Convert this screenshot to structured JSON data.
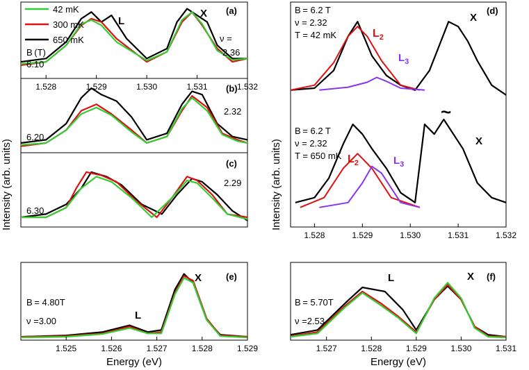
{
  "figure": {
    "y_axis_label": "Intensity (arb. units)",
    "x_axis_label": "Energy (eV)",
    "legend": [
      {
        "label": "42 mK",
        "color": "#33cc33"
      },
      {
        "label": "300 mK",
        "color": "#dd1111"
      },
      {
        "label": "650 mK",
        "color": "#000000"
      }
    ],
    "colors": {
      "green": "#33cc33",
      "red": "#dd1111",
      "black": "#000000",
      "purple": "#8833ee"
    }
  },
  "chart_data": [
    {
      "type": "line",
      "panel_label": "(a)",
      "xlim": [
        1.5275,
        1.532
      ],
      "ylim": [
        0,
        1.15
      ],
      "xticks": [
        1.528,
        1.529,
        1.53,
        1.531,
        1.532
      ],
      "texts": {
        "peak_L": "L",
        "peak_X": "X",
        "bt_label": "B (T)",
        "bt_value": "6.10",
        "nu_label": "ν =",
        "nu_value": "2.36"
      },
      "series": [
        {
          "name": "650 mK",
          "x": [
            1.5275,
            1.528,
            1.5284,
            1.5287,
            1.5289,
            1.5291,
            1.5293,
            1.5296,
            1.53,
            1.5304,
            1.5306,
            1.5308,
            1.531,
            1.5312,
            1.5314,
            1.5317,
            1.532
          ],
          "y": [
            0.25,
            0.3,
            0.55,
            0.9,
            1.0,
            0.85,
            0.95,
            0.6,
            0.3,
            0.45,
            0.85,
            1.05,
            0.95,
            0.85,
            0.5,
            0.3,
            0.3
          ]
        },
        {
          "name": "300 mK",
          "x": [
            1.5275,
            1.528,
            1.5284,
            1.5287,
            1.5289,
            1.5291,
            1.5294,
            1.53,
            1.5304,
            1.5307,
            1.5309,
            1.5311,
            1.5314,
            1.5317,
            1.532
          ],
          "y": [
            0.2,
            0.25,
            0.5,
            0.8,
            0.9,
            0.85,
            0.6,
            0.25,
            0.4,
            0.85,
            1.0,
            0.8,
            0.45,
            0.25,
            0.3
          ]
        },
        {
          "name": "42 mK",
          "x": [
            1.5275,
            1.528,
            1.5284,
            1.5287,
            1.5289,
            1.5291,
            1.5294,
            1.53,
            1.5304,
            1.5307,
            1.5309,
            1.5311,
            1.5314,
            1.5317,
            1.532
          ],
          "y": [
            0.22,
            0.25,
            0.5,
            0.82,
            0.88,
            0.8,
            0.55,
            0.27,
            0.4,
            0.88,
            1.0,
            0.82,
            0.42,
            0.28,
            0.3
          ]
        }
      ]
    },
    {
      "type": "line",
      "panel_label": "(b)",
      "xlim": [
        1.5275,
        1.532
      ],
      "ylim": [
        0,
        1.15
      ],
      "texts": {
        "bt_value": "6.20",
        "nu_value": "2.32"
      },
      "series": [
        {
          "name": "650 mK",
          "x": [
            1.5275,
            1.528,
            1.5284,
            1.5287,
            1.5289,
            1.5291,
            1.5294,
            1.5297,
            1.53,
            1.5304,
            1.5307,
            1.5309,
            1.5311,
            1.5314,
            1.5317,
            1.532
          ],
          "y": [
            0.15,
            0.2,
            0.45,
            0.85,
            1.0,
            0.9,
            0.8,
            0.55,
            0.2,
            0.3,
            0.75,
            0.95,
            0.9,
            0.45,
            0.25,
            0.2
          ]
        },
        {
          "name": "300 mK",
          "x": [
            1.5275,
            1.528,
            1.5284,
            1.5287,
            1.529,
            1.5293,
            1.5297,
            1.53,
            1.5304,
            1.5307,
            1.5309,
            1.5312,
            1.5315,
            1.5318,
            1.532
          ],
          "y": [
            0.1,
            0.15,
            0.35,
            0.65,
            0.75,
            0.6,
            0.35,
            0.15,
            0.25,
            0.65,
            0.88,
            0.7,
            0.3,
            0.2,
            0.15
          ]
        },
        {
          "name": "42 mK",
          "x": [
            1.5275,
            1.528,
            1.5284,
            1.5287,
            1.529,
            1.5293,
            1.5297,
            1.53,
            1.5304,
            1.5307,
            1.5309,
            1.5312,
            1.5315,
            1.5318,
            1.532
          ],
          "y": [
            0.12,
            0.15,
            0.35,
            0.6,
            0.7,
            0.58,
            0.32,
            0.15,
            0.25,
            0.68,
            0.85,
            0.65,
            0.28,
            0.18,
            0.15
          ]
        }
      ]
    },
    {
      "type": "line",
      "panel_label": "(c)",
      "xlim": [
        1.5275,
        1.532
      ],
      "ylim": [
        0,
        1.15
      ],
      "texts": {
        "bt_value": "6.30",
        "nu_value": "2.29"
      },
      "series": [
        {
          "name": "650 mK",
          "x": [
            1.5275,
            1.528,
            1.5284,
            1.5287,
            1.5289,
            1.5292,
            1.5295,
            1.5299,
            1.5303,
            1.5306,
            1.5309,
            1.5311,
            1.5314,
            1.5317,
            1.532
          ],
          "y": [
            0.15,
            0.2,
            0.35,
            0.6,
            0.85,
            0.78,
            0.65,
            0.35,
            0.2,
            0.5,
            0.75,
            0.7,
            0.5,
            0.25,
            0.1
          ]
        },
        {
          "name": "300 mK",
          "x": [
            1.5275,
            1.528,
            1.5284,
            1.5286,
            1.5288,
            1.5291,
            1.5294,
            1.5298,
            1.5302,
            1.5305,
            1.5308,
            1.531,
            1.5313,
            1.5316,
            1.532
          ],
          "y": [
            0.15,
            0.15,
            0.3,
            0.6,
            0.85,
            0.8,
            0.7,
            0.4,
            0.15,
            0.45,
            0.78,
            0.72,
            0.5,
            0.2,
            0.15
          ]
        },
        {
          "name": "42 mK",
          "x": [
            1.5275,
            1.528,
            1.5284,
            1.5287,
            1.529,
            1.5293,
            1.5297,
            1.5301,
            1.5305,
            1.5308,
            1.531,
            1.5313,
            1.5316,
            1.532
          ],
          "y": [
            0.15,
            0.15,
            0.3,
            0.6,
            0.78,
            0.7,
            0.45,
            0.15,
            0.45,
            0.72,
            0.68,
            0.45,
            0.2,
            0.12
          ]
        }
      ]
    },
    {
      "type": "line",
      "panel_label": "(d)",
      "xlim": [
        1.5275,
        1.532
      ],
      "ylim": [
        0,
        2.3
      ],
      "xticks": [
        1.528,
        1.529,
        1.53,
        1.531,
        1.532
      ],
      "texts_top": {
        "bt": "B = 6.2 T",
        "nu": "ν = 2.32",
        "temp": "T = 42 mK",
        "l2": "L",
        "l3": "L",
        "x": "X"
      },
      "texts_bottom": {
        "bt": "B = 6.2 T",
        "nu": "ν = 2.32",
        "temp": "T = 650 mK",
        "l2": "L",
        "l3": "L",
        "x": "X",
        "break_mark": "~"
      },
      "series": [
        {
          "name": "data 42 mK",
          "x": [
            1.5275,
            1.528,
            1.5284,
            1.5287,
            1.5289,
            1.5292,
            1.5295,
            1.5298,
            1.5301,
            1.5304,
            1.5306,
            1.5308,
            1.531,
            1.5312,
            1.5314,
            1.5317,
            1.532
          ],
          "y": [
            1.4,
            1.42,
            1.6,
            1.95,
            2.1,
            1.75,
            1.55,
            1.45,
            1.4,
            1.6,
            1.85,
            2.1,
            2.05,
            1.9,
            1.7,
            1.45,
            1.35
          ]
        },
        {
          "name": "fit L2 42 mK",
          "x": [
            1.5275,
            1.528,
            1.5284,
            1.5287,
            1.5289,
            1.5291,
            1.5294,
            1.5298,
            1.5302
          ],
          "y": [
            1.4,
            1.45,
            1.68,
            1.95,
            2.05,
            1.95,
            1.7,
            1.45,
            1.4
          ]
        },
        {
          "name": "fit L3 42 mK",
          "x": [
            1.5281,
            1.5287,
            1.5291,
            1.5293,
            1.5295,
            1.5298,
            1.5303
          ],
          "y": [
            1.4,
            1.43,
            1.48,
            1.53,
            1.49,
            1.42,
            1.4
          ]
        },
        {
          "name": "data 650 mK",
          "x": [
            1.5276,
            1.528,
            1.5283,
            1.5286,
            1.5288,
            1.529,
            1.5292,
            1.5295,
            1.5298,
            1.5301,
            1.5303,
            1.5305,
            1.5307,
            1.5309,
            1.5311,
            1.5314,
            1.5317,
            1.532
          ],
          "y": [
            0.25,
            0.3,
            0.5,
            0.85,
            1.05,
            0.95,
            0.8,
            0.6,
            0.35,
            0.25,
            1.05,
            0.95,
            1.1,
            0.95,
            0.8,
            0.45,
            0.3,
            0.25
          ]
        },
        {
          "name": "fit L2 650 mK",
          "x": [
            1.5277,
            1.5282,
            1.5286,
            1.5289,
            1.5292,
            1.5296,
            1.5302
          ],
          "y": [
            0.2,
            0.3,
            0.6,
            0.75,
            0.6,
            0.3,
            0.2
          ]
        },
        {
          "name": "fit L3 650 mK",
          "x": [
            1.5281,
            1.5287,
            1.529,
            1.5292,
            1.5294,
            1.5298,
            1.5302
          ],
          "y": [
            0.2,
            0.25,
            0.45,
            0.62,
            0.55,
            0.25,
            0.2
          ]
        }
      ]
    },
    {
      "type": "line",
      "panel_label": "(e)",
      "xlim": [
        1.524,
        1.529
      ],
      "ylim": [
        0,
        1.15
      ],
      "xticks": [
        1.525,
        1.526,
        1.527,
        1.528,
        1.529
      ],
      "texts": {
        "peak_L": "L",
        "peak_X": "X",
        "bt": "B = 4.80T",
        "nu": "ν =3.00"
      },
      "series": [
        {
          "name": "650 mK",
          "x": [
            1.524,
            1.525,
            1.5258,
            1.5264,
            1.5268,
            1.5271,
            1.5274,
            1.5276,
            1.5278,
            1.5281,
            1.5284,
            1.529
          ],
          "y": [
            0.05,
            0.07,
            0.12,
            0.22,
            0.12,
            0.15,
            0.75,
            0.98,
            0.85,
            0.3,
            0.08,
            0.05
          ]
        },
        {
          "name": "300 mK",
          "x": [
            1.524,
            1.525,
            1.5258,
            1.5264,
            1.5268,
            1.5271,
            1.5274,
            1.5276,
            1.5278,
            1.5281,
            1.5284,
            1.529
          ],
          "y": [
            0.05,
            0.06,
            0.1,
            0.2,
            0.1,
            0.12,
            0.7,
            0.95,
            0.88,
            0.32,
            0.07,
            0.05
          ]
        },
        {
          "name": "42 mK",
          "x": [
            1.524,
            1.525,
            1.5258,
            1.5264,
            1.5268,
            1.5271,
            1.5274,
            1.5276,
            1.5278,
            1.5281,
            1.5284,
            1.529
          ],
          "y": [
            0.04,
            0.05,
            0.09,
            0.18,
            0.1,
            0.1,
            0.68,
            0.92,
            0.85,
            0.3,
            0.06,
            0.04
          ]
        }
      ]
    },
    {
      "type": "line",
      "panel_label": "(f)",
      "xlim": [
        1.5262,
        1.531
      ],
      "ylim": [
        0,
        1.15
      ],
      "xticks": [
        1.527,
        1.528,
        1.529,
        1.53,
        1.531
      ],
      "texts": {
        "peak_L": "L",
        "peak_X": "X",
        "bt": "B = 5.70T",
        "nu": "ν =2.53"
      },
      "series": [
        {
          "name": "650 mK",
          "x": [
            1.5262,
            1.5268,
            1.5275,
            1.5278,
            1.5283,
            1.5287,
            1.529,
            1.5294,
            1.5297,
            1.53,
            1.5303,
            1.5306,
            1.531
          ],
          "y": [
            0.08,
            0.15,
            0.6,
            0.78,
            0.72,
            0.45,
            0.15,
            0.6,
            0.8,
            0.6,
            0.2,
            0.08,
            0.05
          ]
        },
        {
          "name": "300 mK",
          "x": [
            1.5262,
            1.5268,
            1.5274,
            1.5278,
            1.5282,
            1.5286,
            1.529,
            1.5294,
            1.5297,
            1.53,
            1.5303,
            1.5306,
            1.531
          ],
          "y": [
            0.06,
            0.12,
            0.5,
            0.72,
            0.55,
            0.35,
            0.12,
            0.6,
            0.82,
            0.6,
            0.2,
            0.06,
            0.05
          ]
        },
        {
          "name": "42 mK",
          "x": [
            1.5262,
            1.5268,
            1.5274,
            1.5278,
            1.5282,
            1.5286,
            1.529,
            1.5294,
            1.5297,
            1.53,
            1.5303,
            1.5306,
            1.531
          ],
          "y": [
            0.05,
            0.1,
            0.48,
            0.7,
            0.52,
            0.33,
            0.1,
            0.62,
            0.85,
            0.62,
            0.18,
            0.05,
            0.04
          ]
        }
      ]
    }
  ]
}
